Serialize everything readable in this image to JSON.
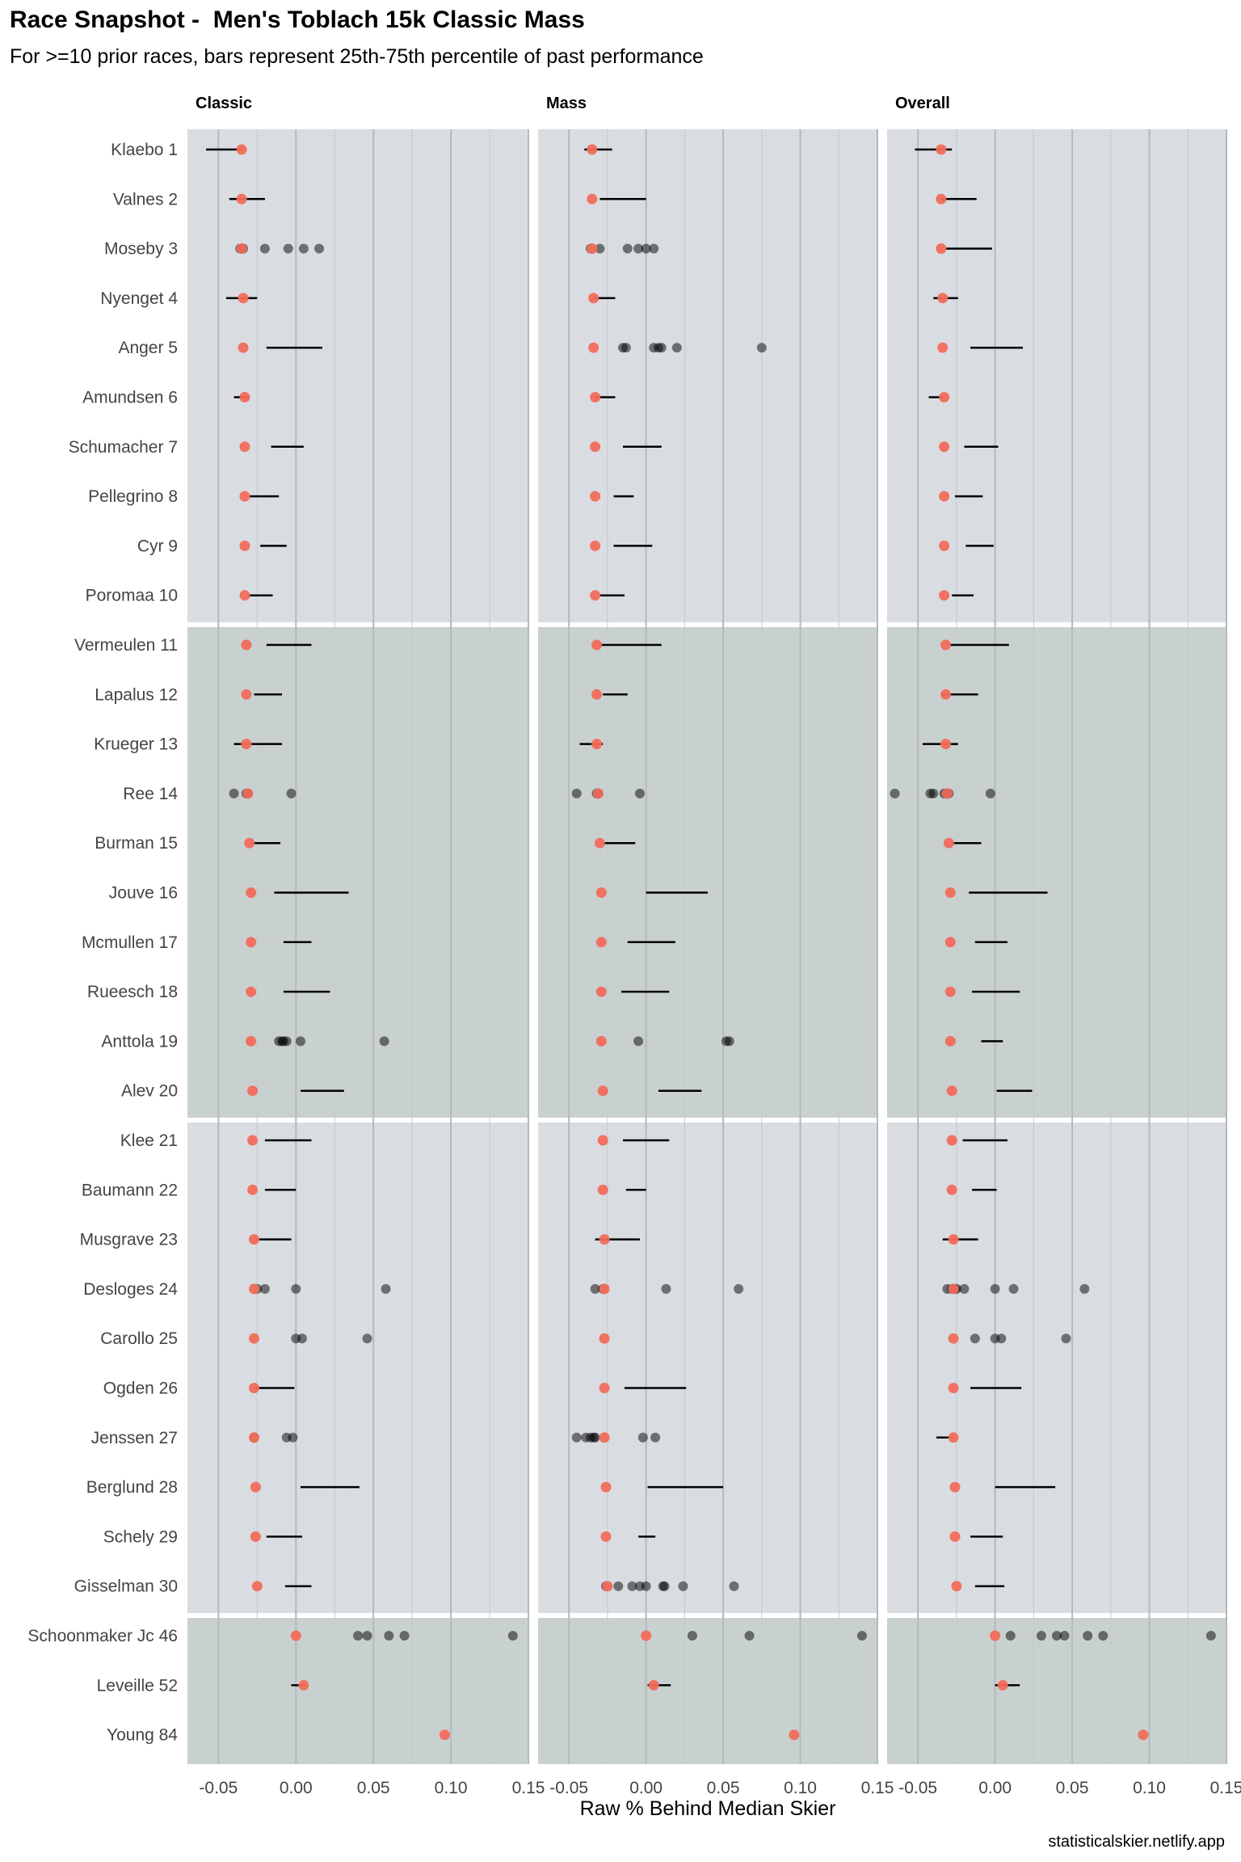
{
  "chart_data": {
    "type": "scatter",
    "title": "Race Snapshot -  Men's Toblach 15k Classic Mass",
    "subtitle": "For >=10 prior races, bars represent 25th-75th percentile of past performance",
    "xlabel": "Raw % Behind Median Skier",
    "caption": "statisticalskier.netlify.app",
    "facets": [
      "Classic",
      "Mass",
      "Overall"
    ],
    "xlim": [
      -0.07,
      0.15
    ],
    "xticks": [
      -0.05,
      0.0,
      0.05,
      0.1,
      0.15
    ],
    "xtick_labels": [
      "-0.05",
      "0.00",
      "0.05",
      "0.10",
      "0.15"
    ],
    "grid": true,
    "colors": {
      "current_point": "#f26b5b",
      "past_point": "#000000",
      "bar": "#000000",
      "band_a": "#d9dce1",
      "band_b": "#c9d1d0"
    },
    "skiers": [
      {
        "label": "Klaebo 1",
        "current": -0.035,
        "classic": {
          "iqr": [
            -0.058,
            -0.035
          ],
          "points": []
        },
        "mass": {
          "iqr": [
            -0.04,
            -0.022
          ],
          "points": []
        },
        "overall": {
          "iqr": [
            -0.052,
            -0.028
          ],
          "points": []
        }
      },
      {
        "label": "Valnes 2",
        "current": -0.035,
        "classic": {
          "iqr": [
            -0.043,
            -0.02
          ],
          "points": []
        },
        "mass": {
          "iqr": [
            -0.03,
            0.0
          ],
          "points": []
        },
        "overall": {
          "iqr": [
            -0.035,
            -0.012
          ],
          "points": []
        }
      },
      {
        "label": "Moseby 3",
        "current": -0.035,
        "classic": {
          "iqr": null,
          "points": [
            -0.036,
            -0.035,
            -0.034,
            -0.02,
            -0.005,
            0.005,
            0.015
          ]
        },
        "mass": {
          "iqr": null,
          "points": [
            -0.036,
            -0.03,
            -0.012,
            -0.005,
            0.0,
            0.005
          ]
        },
        "overall": {
          "iqr": [
            -0.032,
            -0.002
          ],
          "points": []
        }
      },
      {
        "label": "Nyenget 4",
        "current": -0.034,
        "classic": {
          "iqr": [
            -0.045,
            -0.025
          ],
          "points": []
        },
        "mass": {
          "iqr": [
            -0.034,
            -0.02
          ],
          "points": []
        },
        "overall": {
          "iqr": [
            -0.04,
            -0.024
          ],
          "points": []
        }
      },
      {
        "label": "Anger 5",
        "current": -0.034,
        "classic": {
          "iqr": [
            -0.019,
            0.017
          ],
          "points": []
        },
        "mass": {
          "iqr": null,
          "points": [
            -0.015,
            -0.013,
            0.005,
            0.008,
            0.01,
            0.02,
            0.075
          ]
        },
        "overall": {
          "iqr": [
            -0.016,
            0.018
          ],
          "points": []
        }
      },
      {
        "label": "Amundsen 6",
        "current": -0.033,
        "classic": {
          "iqr": [
            -0.04,
            -0.03
          ],
          "points": []
        },
        "mass": {
          "iqr": [
            -0.033,
            -0.02
          ],
          "points": []
        },
        "overall": {
          "iqr": [
            -0.043,
            -0.034
          ],
          "points": []
        }
      },
      {
        "label": "Schumacher 7",
        "current": -0.033,
        "classic": {
          "iqr": [
            -0.016,
            0.005
          ],
          "points": []
        },
        "mass": {
          "iqr": [
            -0.015,
            0.01
          ],
          "points": []
        },
        "overall": {
          "iqr": [
            -0.02,
            0.002
          ],
          "points": []
        }
      },
      {
        "label": "Pellegrino 8",
        "current": -0.033,
        "classic": {
          "iqr": [
            -0.03,
            -0.011
          ],
          "points": []
        },
        "mass": {
          "iqr": [
            -0.021,
            -0.008
          ],
          "points": []
        },
        "overall": {
          "iqr": [
            -0.026,
            -0.008
          ],
          "points": []
        }
      },
      {
        "label": "Cyr 9",
        "current": -0.033,
        "classic": {
          "iqr": [
            -0.023,
            -0.006
          ],
          "points": []
        },
        "mass": {
          "iqr": [
            -0.021,
            0.004
          ],
          "points": []
        },
        "overall": {
          "iqr": [
            -0.019,
            -0.001
          ],
          "points": []
        }
      },
      {
        "label": "Poromaa 10",
        "current": -0.033,
        "classic": {
          "iqr": [
            -0.031,
            -0.015
          ],
          "points": []
        },
        "mass": {
          "iqr": [
            -0.03,
            -0.014
          ],
          "points": []
        },
        "overall": {
          "iqr": [
            -0.028,
            -0.014
          ],
          "points": []
        }
      },
      {
        "label": "Vermeulen 11",
        "current": -0.032,
        "classic": {
          "iqr": [
            -0.019,
            0.01
          ],
          "points": []
        },
        "mass": {
          "iqr": [
            -0.03,
            0.01
          ],
          "points": []
        },
        "overall": {
          "iqr": [
            -0.03,
            0.009
          ],
          "points": []
        }
      },
      {
        "label": "Lapalus 12",
        "current": -0.032,
        "classic": {
          "iqr": [
            -0.027,
            -0.009
          ],
          "points": []
        },
        "mass": {
          "iqr": [
            -0.028,
            -0.012
          ],
          "points": []
        },
        "overall": {
          "iqr": [
            -0.035,
            -0.011
          ],
          "points": []
        }
      },
      {
        "label": "Krueger 13",
        "current": -0.032,
        "classic": {
          "iqr": [
            -0.04,
            -0.009
          ],
          "points": []
        },
        "mass": {
          "iqr": [
            -0.043,
            -0.028
          ],
          "points": []
        },
        "overall": {
          "iqr": [
            -0.047,
            -0.024
          ],
          "points": []
        }
      },
      {
        "label": "Ree 14",
        "current": -0.031,
        "classic": {
          "iqr": null,
          "points": [
            -0.04,
            -0.032,
            -0.031,
            -0.003
          ]
        },
        "mass": {
          "iqr": null,
          "points": [
            -0.045,
            -0.032,
            -0.031,
            -0.004
          ]
        },
        "overall": {
          "iqr": null,
          "points": [
            -0.065,
            -0.042,
            -0.04,
            -0.033,
            -0.031,
            -0.03,
            -0.003
          ]
        }
      },
      {
        "label": "Burman 15",
        "current": -0.03,
        "classic": {
          "iqr": [
            -0.029,
            -0.01
          ],
          "points": []
        },
        "mass": {
          "iqr": [
            -0.028,
            -0.007
          ],
          "points": []
        },
        "overall": {
          "iqr": [
            -0.028,
            -0.009
          ],
          "points": []
        }
      },
      {
        "label": "Jouve 16",
        "current": -0.029,
        "classic": {
          "iqr": [
            -0.014,
            0.034
          ],
          "points": []
        },
        "mass": {
          "iqr": [
            0.0,
            0.04
          ],
          "points": []
        },
        "overall": {
          "iqr": [
            -0.017,
            0.034
          ],
          "points": []
        }
      },
      {
        "label": "Mcmullen 17",
        "current": -0.029,
        "classic": {
          "iqr": [
            -0.008,
            0.01
          ],
          "points": []
        },
        "mass": {
          "iqr": [
            -0.012,
            0.019
          ],
          "points": []
        },
        "overall": {
          "iqr": [
            -0.013,
            0.008
          ],
          "points": []
        }
      },
      {
        "label": "Rueesch 18",
        "current": -0.029,
        "classic": {
          "iqr": [
            -0.008,
            0.022
          ],
          "points": []
        },
        "mass": {
          "iqr": [
            -0.016,
            0.015
          ],
          "points": []
        },
        "overall": {
          "iqr": [
            -0.015,
            0.016
          ],
          "points": []
        }
      },
      {
        "label": "Anttola 19",
        "current": -0.029,
        "classic": {
          "iqr": null,
          "points": [
            -0.011,
            -0.009,
            -0.008,
            -0.006,
            0.003,
            0.057
          ]
        },
        "mass": {
          "iqr": null,
          "points": [
            -0.005,
            0.052,
            0.054
          ]
        },
        "overall": {
          "iqr": [
            -0.009,
            0.005
          ],
          "points": []
        }
      },
      {
        "label": "Alev 20",
        "current": -0.028,
        "classic": {
          "iqr": [
            0.003,
            0.031
          ],
          "points": []
        },
        "mass": {
          "iqr": [
            0.008,
            0.036
          ],
          "points": []
        },
        "overall": {
          "iqr": [
            0.001,
            0.024
          ],
          "points": []
        }
      },
      {
        "label": "Klee 21",
        "current": -0.028,
        "classic": {
          "iqr": [
            -0.02,
            0.01
          ],
          "points": []
        },
        "mass": {
          "iqr": [
            -0.015,
            0.015
          ],
          "points": []
        },
        "overall": {
          "iqr": [
            -0.021,
            0.008
          ],
          "points": []
        }
      },
      {
        "label": "Baumann 22",
        "current": -0.028,
        "classic": {
          "iqr": [
            -0.02,
            0.0
          ],
          "points": []
        },
        "mass": {
          "iqr": [
            -0.013,
            0.0
          ],
          "points": []
        },
        "overall": {
          "iqr": [
            -0.015,
            0.001
          ],
          "points": []
        }
      },
      {
        "label": "Musgrave 23",
        "current": -0.027,
        "classic": {
          "iqr": [
            -0.026,
            -0.003
          ],
          "points": []
        },
        "mass": {
          "iqr": [
            -0.033,
            -0.004
          ],
          "points": []
        },
        "overall": {
          "iqr": [
            -0.034,
            -0.011
          ],
          "points": []
        }
      },
      {
        "label": "Desloges 24",
        "current": -0.027,
        "classic": {
          "iqr": null,
          "points": [
            -0.025,
            -0.02,
            0.0,
            0.058
          ]
        },
        "mass": {
          "iqr": null,
          "points": [
            -0.033,
            -0.028,
            0.013,
            0.06
          ]
        },
        "overall": {
          "iqr": null,
          "points": [
            -0.031,
            -0.028,
            -0.026,
            -0.025,
            -0.02,
            0.0,
            0.012,
            0.058
          ]
        }
      },
      {
        "label": "Carollo 25",
        "current": -0.027,
        "classic": {
          "iqr": null,
          "points": [
            0.0,
            0.004,
            0.046
          ]
        },
        "mass": {
          "iqr": null,
          "points": []
        },
        "overall": {
          "iqr": null,
          "points": [
            -0.013,
            0.0,
            0.004,
            0.046
          ]
        }
      },
      {
        "label": "Ogden 26",
        "current": -0.027,
        "classic": {
          "iqr": [
            -0.027,
            -0.001
          ],
          "points": []
        },
        "mass": {
          "iqr": [
            -0.014,
            0.026
          ],
          "points": []
        },
        "overall": {
          "iqr": [
            -0.016,
            0.017
          ],
          "points": []
        }
      },
      {
        "label": "Jenssen 27",
        "current": -0.027,
        "classic": {
          "iqr": null,
          "points": [
            -0.027,
            -0.006,
            -0.002
          ]
        },
        "mass": {
          "iqr": null,
          "points": [
            -0.045,
            -0.039,
            -0.036,
            -0.034,
            -0.033,
            -0.002,
            0.006
          ]
        },
        "overall": {
          "iqr": [
            -0.038,
            -0.027
          ],
          "points": []
        }
      },
      {
        "label": "Berglund 28",
        "current": -0.026,
        "classic": {
          "iqr": [
            0.003,
            0.041
          ],
          "points": []
        },
        "mass": {
          "iqr": [
            0.001,
            0.05
          ],
          "points": []
        },
        "overall": {
          "iqr": [
            0.0,
            0.039
          ],
          "points": []
        }
      },
      {
        "label": "Schely 29",
        "current": -0.026,
        "classic": {
          "iqr": [
            -0.019,
            0.004
          ],
          "points": []
        },
        "mass": {
          "iqr": [
            -0.005,
            0.006
          ],
          "points": []
        },
        "overall": {
          "iqr": [
            -0.016,
            0.005
          ],
          "points": []
        }
      },
      {
        "label": "Gisselman 30",
        "current": -0.025,
        "classic": {
          "iqr": [
            -0.007,
            0.01
          ],
          "points": []
        },
        "mass": {
          "iqr": null,
          "points": [
            -0.026,
            -0.018,
            -0.009,
            -0.004,
            0.0,
            0.011,
            0.012,
            0.024,
            0.057
          ]
        },
        "overall": {
          "iqr": [
            -0.013,
            0.006
          ],
          "points": []
        }
      },
      {
        "label": "Schoonmaker Jc 46",
        "current": 0.0,
        "classic": {
          "iqr": null,
          "points": [
            0.04,
            0.046,
            0.06,
            0.07,
            0.14
          ]
        },
        "mass": {
          "iqr": null,
          "points": [
            0.03,
            0.067,
            0.14
          ]
        },
        "overall": {
          "iqr": null,
          "points": [
            0.01,
            0.03,
            0.04,
            0.045,
            0.06,
            0.07,
            0.14
          ]
        }
      },
      {
        "label": "Leveille 52",
        "current": 0.005,
        "classic": {
          "iqr": [
            -0.003,
            0.006
          ],
          "points": []
        },
        "mass": {
          "iqr": [
            0.001,
            0.016
          ],
          "points": []
        },
        "overall": {
          "iqr": [
            0.0,
            0.016
          ],
          "points": []
        }
      },
      {
        "label": "Young 84",
        "current": 0.096,
        "classic": {
          "iqr": null,
          "points": []
        },
        "mass": {
          "iqr": null,
          "points": []
        },
        "overall": {
          "iqr": null,
          "points": []
        }
      }
    ]
  }
}
